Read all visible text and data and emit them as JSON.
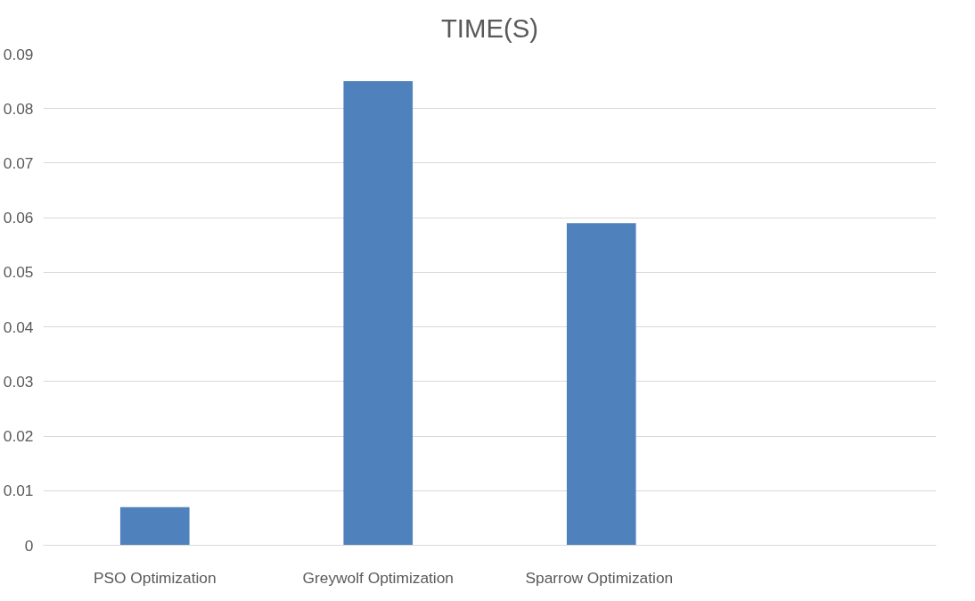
{
  "chart_data": {
    "type": "bar",
    "title": "TIME(S)",
    "categories": [
      "PSO Optimization",
      "Greywolf Optimization",
      "Sparrow  Optimization",
      null
    ],
    "values": [
      0.007,
      0.085,
      0.059,
      null
    ],
    "color": "#4f81bd",
    "ylim": [
      0,
      0.09
    ],
    "yticks": [
      {
        "value": 0,
        "label": "0"
      },
      0.01,
      0.02,
      0.03,
      0.04,
      0.05,
      0.06,
      0.07,
      0.08,
      0.09
    ],
    "grid": "y"
  }
}
